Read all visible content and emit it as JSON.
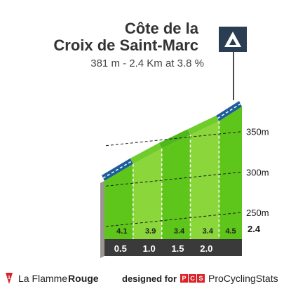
{
  "chart_data": {
    "type": "area",
    "title": [
      "Côte de la",
      "Croix de Saint-Marc"
    ],
    "subtitle": "381 m - 2.4 Km at 3.8 %",
    "x": [
      0,
      0.5,
      1.0,
      1.5,
      2.0,
      2.4
    ],
    "x_tick_labels": [
      "0.5",
      "1.0",
      "1.5",
      "2.0",
      "2.4"
    ],
    "elevation_m": [
      289,
      310,
      329,
      346,
      363,
      381
    ],
    "segment_gradients_pct": [
      "4.1",
      "3.9",
      "3.4",
      "3.4",
      "4.5"
    ],
    "segment_values": [
      4.1,
      3.9,
      3.4,
      3.4,
      4.5
    ],
    "y_tick_labels": [
      "250m",
      "300m",
      "350m"
    ],
    "y_ticks": [
      250,
      300,
      350
    ],
    "ylim": [
      225,
      395
    ],
    "colors": {
      "easy": "#8bd63a",
      "medium": "#5ec61a",
      "steep": "#1e5e9a",
      "base": "#3a3a3a",
      "wall": "#9a9590",
      "summit_icon": "#2a3d52"
    }
  },
  "footer": {
    "brand_part1": "La Flamme",
    "brand_part2": "Rouge",
    "designed_by": "designed for",
    "pcs_letters": [
      "P",
      "C",
      "S"
    ],
    "pcs_name": "ProCyclingStats"
  }
}
